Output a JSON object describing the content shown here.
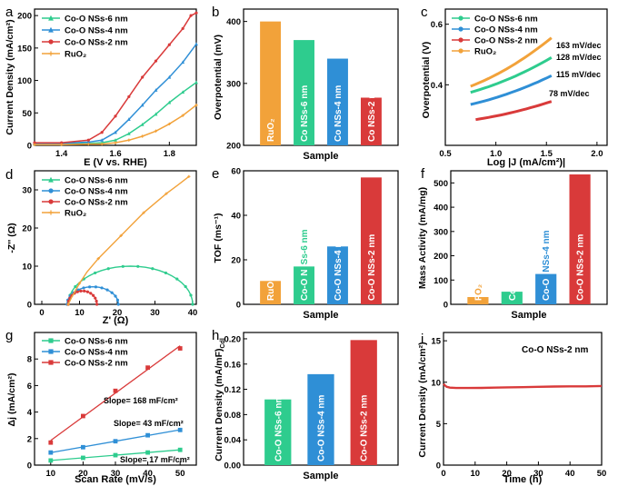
{
  "figure": {
    "colors": {
      "co6": "#2ecc8e",
      "co4": "#2f8fd6",
      "co2": "#d93a3a",
      "ruo2": "#f2a23a",
      "axis": "#000000"
    }
  },
  "chart_data": [
    {
      "panel": "a",
      "type": "line",
      "xlabel": "E (V vs. RHE)",
      "ylabel": "Current Density (mA/cm²)",
      "xlim": [
        1.3,
        1.9
      ],
      "ylim": [
        0,
        210
      ],
      "xticks": [
        1.4,
        1.6,
        1.8
      ],
      "yticks": [
        0,
        50,
        100,
        150,
        200
      ],
      "legend": [
        "Co-O NSs-6 nm",
        "Co-O NSs-4 nm",
        "Co-O NSs-2 nm",
        "RuO₂"
      ],
      "series": [
        {
          "name": "Co-O NSs-6 nm",
          "color": "co6",
          "x": [
            1.3,
            1.4,
            1.5,
            1.55,
            1.6,
            1.65,
            1.7,
            1.75,
            1.8,
            1.85,
            1.9
          ],
          "y": [
            2,
            2,
            3,
            4,
            8,
            18,
            32,
            48,
            66,
            82,
            97
          ]
        },
        {
          "name": "Co-O NSs-4 nm",
          "color": "co4",
          "x": [
            1.3,
            1.4,
            1.5,
            1.55,
            1.6,
            1.65,
            1.7,
            1.75,
            1.8,
            1.85,
            1.9
          ],
          "y": [
            3,
            3,
            5,
            8,
            20,
            40,
            62,
            85,
            105,
            128,
            156
          ]
        },
        {
          "name": "Co-O NSs-2 nm",
          "color": "co2",
          "x": [
            1.3,
            1.4,
            1.5,
            1.55,
            1.6,
            1.65,
            1.7,
            1.75,
            1.8,
            1.85,
            1.88,
            1.9
          ],
          "y": [
            4,
            4,
            8,
            20,
            45,
            75,
            105,
            130,
            155,
            180,
            200,
            204
          ]
        },
        {
          "name": "RuO₂",
          "color": "ruo2",
          "x": [
            1.3,
            1.4,
            1.5,
            1.55,
            1.6,
            1.65,
            1.7,
            1.75,
            1.8,
            1.85,
            1.9
          ],
          "y": [
            1,
            1,
            2,
            2,
            4,
            8,
            14,
            22,
            33,
            46,
            62
          ]
        }
      ]
    },
    {
      "panel": "b",
      "type": "bar",
      "xlabel": "Sample",
      "ylabel": "Overpotential (mV)",
      "ylim": [
        200,
        420
      ],
      "yticks": [
        200,
        300,
        400
      ],
      "categories": [
        "RuO₂",
        "Co NSs-6 nm",
        "Co NSs-4 nm",
        "Co NSs-2 nm"
      ],
      "values": [
        400,
        370,
        340,
        277
      ],
      "colors": [
        "ruo2",
        "co6",
        "co4",
        "co2"
      ]
    },
    {
      "panel": "c",
      "type": "line",
      "xlabel": "Log |J (mA/cm²)|",
      "ylabel": "Overpotential (V)",
      "xlim": [
        0.5,
        2.1
      ],
      "ylim": [
        0.2,
        0.65
      ],
      "xticks": [
        0.5,
        1.0,
        1.5,
        2.0
      ],
      "yticks": [
        0.4,
        0.6
      ],
      "legend": [
        "Co-O NSs-6 nm",
        "Co-O NSs-4 nm",
        "Co-O NSs-2 nm",
        "RuO₂"
      ],
      "annotations": [
        "163 mV/dec",
        "128 mV/dec",
        "115 mV/dec",
        "78 mV/dec"
      ],
      "series": [
        {
          "name": "RuO₂",
          "color": "ruo2",
          "x": [
            0.75,
            1.55
          ],
          "y": [
            0.395,
            0.555
          ]
        },
        {
          "name": "Co-O NSs-6 nm",
          "color": "co6",
          "x": [
            0.75,
            1.55
          ],
          "y": [
            0.375,
            0.49
          ]
        },
        {
          "name": "Co-O NSs-4 nm",
          "color": "co4",
          "x": [
            0.75,
            1.55
          ],
          "y": [
            0.335,
            0.43
          ]
        },
        {
          "name": "Co-O NSs-2 nm",
          "color": "co2",
          "x": [
            0.8,
            1.55
          ],
          "y": [
            0.285,
            0.345
          ]
        }
      ]
    },
    {
      "panel": "d",
      "type": "line",
      "xlabel": "Z' (Ω)",
      "ylabel": "-Z'' (Ω)",
      "xlim": [
        0,
        40
      ],
      "ylim": [
        0,
        35
      ],
      "xticks": [
        0,
        10,
        20,
        30,
        40
      ],
      "yticks": [
        0,
        10,
        20,
        30
      ],
      "legend": [
        "Co-O NSs-6 nm",
        "Co-O NSs-4 nm",
        "Co-O NSs-2 nm",
        "RuO₂"
      ],
      "series": [
        {
          "name": "Co-O NSs-6 nm",
          "color": "co6",
          "center": 23.5,
          "radius": 16.5,
          "height": 10
        },
        {
          "name": "Co-O NSs-4 nm",
          "color": "co4",
          "center": 13.5,
          "radius": 6.8,
          "height": 4.6
        },
        {
          "name": "Co-O NSs-2 nm",
          "color": "co2",
          "center": 10.8,
          "radius": 3.8,
          "height": 3.5
        },
        {
          "name": "RuO₂",
          "color": "ruo2",
          "x": [
            7,
            8,
            10,
            12,
            15,
            18,
            21,
            24,
            27,
            30,
            33,
            36,
            39
          ],
          "y": [
            0,
            2,
            5.5,
            8.5,
            12,
            15,
            18,
            21,
            24,
            26.5,
            29,
            31.2,
            33.5
          ]
        }
      ]
    },
    {
      "panel": "e",
      "type": "bar",
      "xlabel": "Sample",
      "ylabel": "TOF (ms⁻¹)",
      "ylim": [
        0,
        60
      ],
      "yticks": [
        0,
        20,
        40,
        60
      ],
      "categories": [
        "RuO₂",
        "Co-O NSs-6 nm",
        "Co-O NSs-4 nm",
        "Co-O NSs-2 nm"
      ],
      "bar_labels": [
        "RuO",
        "Co-O N",
        "Co-O NSs-4 nm",
        "Co-O NSs-2 nm"
      ],
      "overflow_labels": [
        "",
        "Ss-6 nm",
        "",
        ""
      ],
      "values": [
        10.5,
        17,
        26,
        57
      ],
      "colors": [
        "ruo2",
        "co6",
        "co4",
        "co2"
      ]
    },
    {
      "panel": "f",
      "type": "bar",
      "xlabel": "Sample",
      "ylabel": "Mass Activity (mA/mg)",
      "ylim": [
        0,
        550
      ],
      "yticks": [
        0,
        100,
        200,
        300,
        400,
        500
      ],
      "categories": [
        "RuO₂",
        "Co-O-NSs-6 nm",
        "Co-O NSs-4 nm",
        "Co-O NSs-2 nm"
      ],
      "bar_labels": [
        "Ru",
        "Co-O-NSs-6 nm",
        "Co-O",
        "Co-O NSs-2 nm"
      ],
      "overflow_labels": [
        "O₂",
        "",
        "NSs-4 nm",
        ""
      ],
      "values": [
        30,
        52,
        125,
        535
      ],
      "colors": [
        "ruo2",
        "co6",
        "co4",
        "co2"
      ]
    },
    {
      "panel": "g",
      "type": "scatter",
      "xlabel": "Scan Rate (mV/s)",
      "ylabel": "Δj (mA/cm²)",
      "xlim": [
        5,
        55
      ],
      "ylim": [
        0,
        10
      ],
      "xticks": [
        10,
        20,
        30,
        40,
        50
      ],
      "yticks": [
        0,
        2,
        4,
        6,
        8
      ],
      "legend": [
        "Co-O NSs-6 nm",
        "Co-O NSs-4 nm",
        "Co-O NSs-2 nm"
      ],
      "annotations": [
        "Slope= 168 mF/cm²",
        "Slope= 43 mF/cm²",
        "Slope= 17 mF/cm²"
      ],
      "series": [
        {
          "name": "Co-O NSs-6 nm",
          "color": "co6",
          "x": [
            10,
            20,
            30,
            40,
            50
          ],
          "y": [
            0.35,
            0.55,
            0.75,
            0.95,
            1.15
          ]
        },
        {
          "name": "Co-O NSs-4 nm",
          "color": "co4",
          "x": [
            10,
            20,
            30,
            40,
            50
          ],
          "y": [
            0.95,
            1.35,
            1.8,
            2.25,
            2.65
          ]
        },
        {
          "name": "Co-O NSs-2 nm",
          "color": "co2",
          "x": [
            10,
            20,
            30,
            40,
            50
          ],
          "y": [
            1.7,
            3.7,
            5.6,
            7.35,
            8.8
          ]
        }
      ]
    },
    {
      "panel": "h",
      "type": "bar",
      "xlabel": "Sample",
      "ylabel": "Current Density (mA/mF)",
      "ylabel_sub": "Cdl",
      "ylim": [
        0,
        0.21
      ],
      "yticks": [
        0.0,
        0.04,
        0.08,
        0.12,
        0.16,
        0.2
      ],
      "categories": [
        "Co-O NSs-6 nm",
        "Co-O NSs-4 nm",
        "Co-O NSs-2 nm"
      ],
      "values": [
        0.104,
        0.144,
        0.198
      ],
      "colors": [
        "co6",
        "co4",
        "co2"
      ]
    },
    {
      "panel": "i",
      "type": "line",
      "xlabel": "Time (h)",
      "ylabel": "Current Density (mA/cm²)",
      "xlim": [
        0,
        50
      ],
      "ylim": [
        0,
        16
      ],
      "xticks": [
        0,
        10,
        20,
        30,
        40,
        50
      ],
      "yticks": [
        0,
        5,
        10,
        15
      ],
      "legend": [
        "Co-O NSs-2 nm"
      ],
      "series": [
        {
          "name": "Co-O NSs-2 nm",
          "color": "co2",
          "x": [
            0,
            0.5,
            1,
            2,
            4,
            8,
            12,
            16,
            20,
            25,
            30,
            35,
            40,
            45,
            50
          ],
          "y": [
            9.8,
            9.6,
            9.45,
            9.35,
            9.3,
            9.3,
            9.32,
            9.35,
            9.38,
            9.4,
            9.45,
            9.48,
            9.5,
            9.5,
            9.55
          ]
        }
      ]
    }
  ]
}
